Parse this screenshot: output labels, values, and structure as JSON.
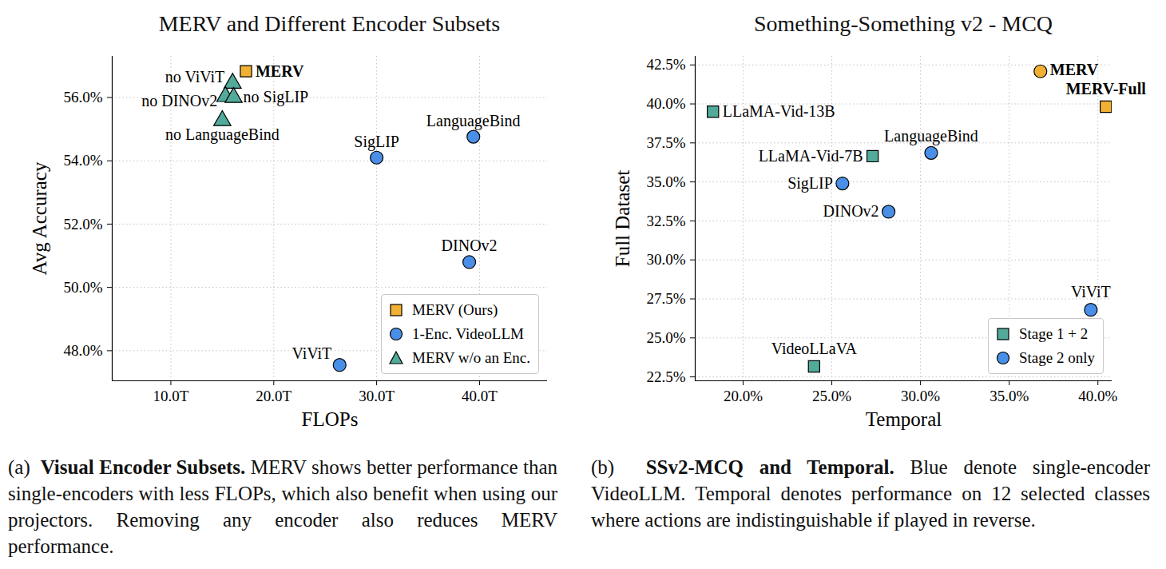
{
  "chart_data": [
    {
      "type": "scatter",
      "title": "MERV and Different Encoder Subsets",
      "x_label": "FLOPs",
      "y_label": "Avg Accuracy",
      "xlim": [
        4.3,
        46.6
      ],
      "ylim": [
        47.05,
        57.3
      ],
      "xticks": [
        {
          "value": 10,
          "label": "10.0T"
        },
        {
          "value": 20,
          "label": "20.0T"
        },
        {
          "value": 30,
          "label": "30.0T"
        },
        {
          "value": 40,
          "label": "40.0T"
        }
      ],
      "yticks": [
        {
          "value": 48,
          "label": "48.0%"
        },
        {
          "value": 50,
          "label": "50.0%"
        },
        {
          "value": 52,
          "label": "52.0%"
        },
        {
          "value": 54,
          "label": "54.0%"
        },
        {
          "value": 56,
          "label": "56.0%"
        }
      ],
      "grid": true,
      "legend": "lower right",
      "series": [
        {
          "name": "MERV (Ours)",
          "color": "#f2b134",
          "marker": "square",
          "labels": [
            "MERV"
          ],
          "x": [
            17.3
          ],
          "y": [
            56.83
          ]
        },
        {
          "name": "1-Enc. VideoLLM",
          "color": "#4a8fe7",
          "marker": "circle",
          "labels": [
            "SigLIP",
            "LanguageBind",
            "DINOv2",
            "ViViT"
          ],
          "x": [
            30.0,
            39.4,
            39.0,
            26.4
          ],
          "y": [
            54.1,
            54.76,
            50.8,
            47.55
          ]
        },
        {
          "name": "MERV w/o an Enc.",
          "color": "#52aa9a",
          "marker": "triangle",
          "labels": [
            "no ViViT",
            "no DINOv2",
            "no SigLIP",
            "no LanguageBind"
          ],
          "x": [
            16.0,
            15.3,
            16.1,
            15.0
          ],
          "y": [
            56.45,
            56.03,
            56.0,
            55.27
          ]
        }
      ],
      "caption": {
        "label": "(a)",
        "heading": "Visual Encoder Subsets.",
        "text": "MERV shows better performance than single-encoders with less FLOPs, which also benefit when using our projectors. Removing any encoder also reduces MERV performance."
      }
    },
    {
      "type": "scatter",
      "title": "Something-Something v2 - MCQ",
      "x_label": "Temporal",
      "y_label": "Full Dataset",
      "xlim": [
        17.3,
        40.8
      ],
      "ylim": [
        22.25,
        43.05
      ],
      "xticks": [
        {
          "value": 20,
          "label": "20.0%"
        },
        {
          "value": 25,
          "label": "25.0%"
        },
        {
          "value": 30,
          "label": "30.0%"
        },
        {
          "value": 35,
          "label": "35.0%"
        },
        {
          "value": 40,
          "label": "40.0%"
        }
      ],
      "yticks": [
        {
          "value": 22.5,
          "label": "22.5%"
        },
        {
          "value": 25,
          "label": "25.0%"
        },
        {
          "value": 27.5,
          "label": "27.5%"
        },
        {
          "value": 30,
          "label": "30.0%"
        },
        {
          "value": 32.5,
          "label": "32.5%"
        },
        {
          "value": 35,
          "label": "35.0%"
        },
        {
          "value": 37.5,
          "label": "37.5%"
        },
        {
          "value": 40,
          "label": "40.0%"
        },
        {
          "value": 42.5,
          "label": "42.5%"
        }
      ],
      "grid": true,
      "legend": "lower right",
      "series": [
        {
          "color": "#f2b134",
          "marker": "circle",
          "labels": [
            "MERV"
          ],
          "x": [
            36.76
          ],
          "y": [
            42.09
          ]
        },
        {
          "color": "#f2b134",
          "marker": "square",
          "labels": [
            "MERV-Full"
          ],
          "x": [
            40.45
          ],
          "y": [
            39.82
          ]
        },
        {
          "name": "Stage 1 + 2",
          "color": "#52aa9a",
          "marker": "square",
          "labels": [
            "LLaMA-Vid-13B",
            "LLaMA-Vid-7B",
            "VideoLLaVA"
          ],
          "x": [
            18.3,
            27.3,
            24.0
          ],
          "y": [
            39.5,
            36.65,
            23.17
          ]
        },
        {
          "name": "Stage 2 only",
          "color": "#4a8fe7",
          "marker": "circle",
          "labels": [
            "LanguageBind",
            "SigLIP",
            "DINOv2",
            "ViViT"
          ],
          "x": [
            30.6,
            25.6,
            28.2,
            39.6
          ],
          "y": [
            36.86,
            34.9,
            33.09,
            26.8
          ]
        }
      ],
      "caption": {
        "label": "(b)",
        "heading": "SSv2-MCQ and Temporal.",
        "text": "Blue denote single-encoder VideoLLM. Temporal denotes performance on 12 selected classes where actions are indistinguishable if played in reverse."
      }
    }
  ]
}
